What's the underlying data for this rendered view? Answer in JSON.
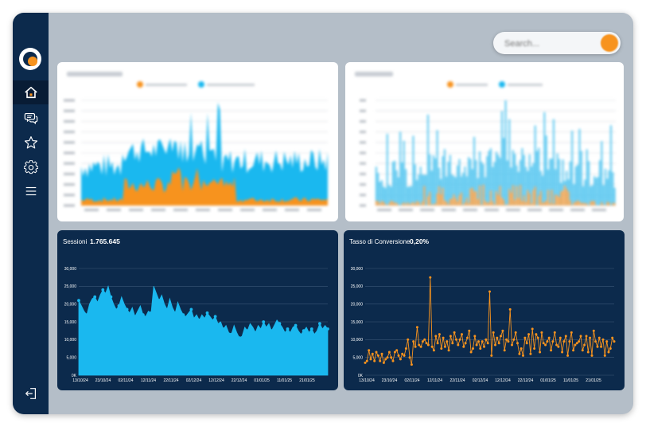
{
  "search": {
    "placeholder": "Search..."
  },
  "sidebar": {
    "items": [
      {
        "icon": "home-icon"
      },
      {
        "icon": "chat-icon"
      },
      {
        "icon": "star-icon"
      },
      {
        "icon": "gear-icon"
      },
      {
        "icon": "menu-icon"
      }
    ],
    "logout_icon": "logout-icon"
  },
  "colors": {
    "orange": "#f7931e",
    "blue": "#1ab8ef",
    "navy": "#0c2a4c"
  },
  "cards": {
    "top_left": {
      "title": "",
      "value": ""
    },
    "top_right": {
      "title": "",
      "value": ""
    },
    "sessions": {
      "title": "Sessioni",
      "value": "1.765.645"
    },
    "conversion": {
      "title": "Tasso di Conversione",
      "value": "0,20%"
    }
  },
  "chart_data": [
    {
      "type": "area",
      "title": "Sessioni",
      "y_ticks": [
        "0K",
        "5,000",
        "10,000",
        "15,000",
        "20,000",
        "25,000",
        "30,000"
      ],
      "ylim": [
        0,
        30000
      ],
      "x_ticks": [
        "13/10/24",
        "23/10/24",
        "02/11/24",
        "12/11/24",
        "22/11/24",
        "02/12/24",
        "12/12/24",
        "22/12/24",
        "01/01/25",
        "11/01/25",
        "21/01/25"
      ],
      "values": [
        21000,
        19500,
        18000,
        17000,
        20000,
        21500,
        22000,
        20500,
        22500,
        24000,
        23000,
        25000,
        22000,
        20000,
        18500,
        19500,
        22000,
        20000,
        18500,
        17500,
        19000,
        16500,
        18000,
        19500,
        17000,
        16500,
        18000,
        17500,
        25000,
        23000,
        21000,
        22500,
        20000,
        18500,
        21500,
        19000,
        17500,
        20500,
        18500,
        17000,
        16500,
        17500,
        18500,
        16000,
        17000,
        15500,
        17000,
        16000,
        17500,
        16500,
        15500,
        16500,
        14500,
        15000,
        13000,
        14000,
        12000,
        11500,
        14000,
        12000,
        10500,
        11000,
        13500,
        12500,
        14500,
        13500,
        12000,
        14000,
        13000,
        15000,
        13500,
        14500,
        12500,
        14000,
        15500,
        14500,
        13500,
        12000,
        13000,
        12000,
        13500,
        14000,
        12500,
        11500,
        12500,
        13500,
        12000,
        13000,
        11500,
        12500,
        14500,
        13000,
        14000,
        13000
      ],
      "color": "#1ab8ef"
    },
    {
      "type": "line",
      "title": "Tasso di Conversione",
      "y_ticks": [
        "0K",
        "5,000",
        "10,000",
        "15,000",
        "20,000",
        "25,000",
        "30,000"
      ],
      "ylim": [
        0,
        30000
      ],
      "x_ticks": [
        "13/10/24",
        "23/10/24",
        "02/11/24",
        "12/11/24",
        "22/11/24",
        "02/12/24",
        "12/12/24",
        "22/12/24",
        "01/01/25",
        "11/01/25",
        "21/01/25"
      ],
      "values": [
        3500,
        4000,
        7000,
        4500,
        6000,
        4000,
        6500,
        5500,
        4000,
        6000,
        3500,
        4500,
        5000,
        6500,
        5000,
        4000,
        6500,
        7000,
        5500,
        4500,
        6000,
        5500,
        7500,
        10000,
        5000,
        3000,
        9500,
        8000,
        13500,
        8500,
        8000,
        9500,
        10000,
        9000,
        8500,
        27500,
        8000,
        7000,
        11000,
        9000,
        11500,
        7500,
        10500,
        8000,
        9500,
        7000,
        11000,
        9000,
        12000,
        10000,
        8500,
        10000,
        11500,
        8000,
        9000,
        10500,
        12500,
        6500,
        7500,
        11000,
        8500,
        9500,
        7500,
        9500,
        8000,
        10000,
        9000,
        23500,
        5500,
        12000,
        8500,
        10500,
        9000,
        11000,
        12500,
        7000,
        10000,
        9500,
        18500,
        8500,
        10000,
        12000,
        9000,
        6000,
        7500,
        5500,
        10500,
        9000,
        11500,
        6000,
        13000,
        7500,
        11500,
        10500,
        6500,
        12000,
        9000,
        8500,
        9500,
        10500,
        7000,
        9500,
        12000,
        8500,
        8000,
        10500,
        6500,
        9500,
        11000,
        5500,
        9500,
        12000,
        7000,
        8500,
        9000,
        9500,
        11000,
        7000,
        8500,
        11000,
        6500,
        10500,
        5500,
        12500,
        9500,
        8000,
        10500,
        8000,
        10000,
        5500,
        9500,
        6500,
        7500,
        10500,
        9500
      ],
      "color": "#f7931e"
    }
  ]
}
